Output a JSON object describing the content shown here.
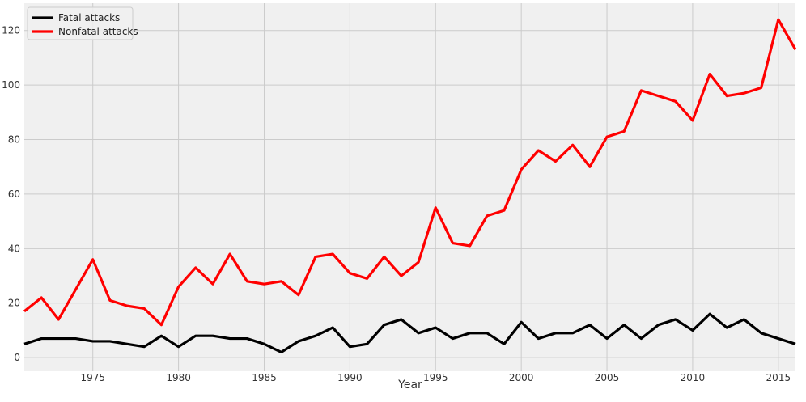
{
  "chart_data": {
    "type": "line",
    "title": "",
    "xlabel": "Year",
    "ylabel": "",
    "xlim": [
      1971,
      2016
    ],
    "ylim": [
      -5,
      130
    ],
    "grid": true,
    "legend_position": "top-left",
    "x_ticks": [
      1975,
      1980,
      1985,
      1990,
      1995,
      2000,
      2005,
      2010,
      2015
    ],
    "y_ticks": [
      0,
      20,
      40,
      60,
      80,
      100,
      120
    ],
    "x": [
      1971,
      1972,
      1973,
      1974,
      1975,
      1976,
      1977,
      1978,
      1979,
      1980,
      1981,
      1982,
      1983,
      1984,
      1985,
      1986,
      1987,
      1988,
      1989,
      1990,
      1991,
      1992,
      1993,
      1994,
      1995,
      1996,
      1997,
      1998,
      1999,
      2000,
      2001,
      2002,
      2003,
      2004,
      2005,
      2006,
      2007,
      2008,
      2009,
      2010,
      2011,
      2012,
      2013,
      2014,
      2015,
      2016
    ],
    "series": [
      {
        "name": "Fatal attacks",
        "color": "#000000",
        "values": [
          5,
          7,
          7,
          7,
          6,
          6,
          5,
          4,
          8,
          4,
          8,
          8,
          7,
          7,
          5,
          2,
          6,
          8,
          11,
          4,
          5,
          12,
          14,
          9,
          11,
          7,
          9,
          9,
          5,
          13,
          7,
          9,
          9,
          12,
          7,
          12,
          7,
          12,
          14,
          10,
          16,
          11,
          14,
          9,
          7,
          5
        ]
      },
      {
        "name": "Nonfatal attacks",
        "color": "#ff0000",
        "values": [
          17,
          22,
          14,
          25,
          36,
          21,
          19,
          18,
          12,
          26,
          33,
          27,
          38,
          28,
          27,
          28,
          23,
          37,
          38,
          31,
          29,
          37,
          30,
          35,
          55,
          42,
          41,
          52,
          54,
          69,
          76,
          72,
          78,
          70,
          81,
          83,
          98,
          96,
          94,
          87,
          104,
          96,
          97,
          99,
          124,
          113
        ]
      }
    ]
  }
}
